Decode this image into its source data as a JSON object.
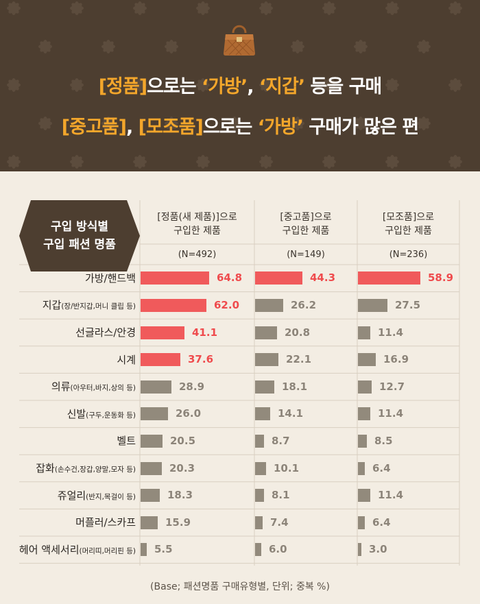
{
  "header": {
    "title_line1": {
      "a_hl": "[정품]",
      "b": "으로는 ",
      "c_hl": "‘가방’",
      "d": ", ",
      "e_hl": "‘지갑’",
      "f": " 등을 구매"
    },
    "title_line2": {
      "a_hl": "[중고품]",
      "b": ", ",
      "c_hl": "[모조품]",
      "d": "으로는 ",
      "e_hl": "‘가방’",
      "f": " 구매가 많은 편"
    },
    "icon": "handbag-icon"
  },
  "table": {
    "row_header_line1": "구입 방식별",
    "row_header_line2": "구입 패션 명품",
    "columns": [
      {
        "title_line1": "[정품(새 제품)]으로",
        "title_line2": "구입한 제품",
        "n": "(N=492)"
      },
      {
        "title_line1": "[중고품]으로",
        "title_line2": "구입한 제품",
        "n": "(N=149)"
      },
      {
        "title_line1": "[모조품]으로",
        "title_line2": "구입한 제품",
        "n": "(N=236)"
      }
    ],
    "rows": [
      {
        "main": "가방/핸드백",
        "sub": ""
      },
      {
        "main": "지갑",
        "sub": "(장/반지갑,머니 클립 등)"
      },
      {
        "main": "선글라스/안경",
        "sub": ""
      },
      {
        "main": "시계",
        "sub": ""
      },
      {
        "main": "의류",
        "sub": "(아우터,바지,상의 등)"
      },
      {
        "main": "신발",
        "sub": "(구두,운동화 등)"
      },
      {
        "main": "벨트",
        "sub": ""
      },
      {
        "main": "잡화",
        "sub": "(손수건,장갑,양말,모자 등)"
      },
      {
        "main": "쥬얼리",
        "sub": "(반지,목걸이 등)"
      },
      {
        "main": "머플러/스카프",
        "sub": ""
      },
      {
        "main": "헤어 액세서리",
        "sub": "(머리띠,머리핀 등)"
      }
    ]
  },
  "footnote": "(Base; 패션명품 구매유형별, 단위; 중복 %)",
  "colors": {
    "highlight_bar": "#f05a5b",
    "highlight_text": "#ef4b4d",
    "normal_bar": "#928a7c",
    "normal_text": "#8c8479",
    "title_accent": "#f3a62b",
    "header_bg": "#4d3e30",
    "panel_bg": "#f3ede3"
  },
  "chart_data": {
    "type": "bar",
    "orientation": "horizontal",
    "title": "",
    "xlabel": "",
    "ylabel": "",
    "unit": "%",
    "categories": [
      "가방/핸드백",
      "지갑",
      "선글라스/안경",
      "시계",
      "의류",
      "신발",
      "벨트",
      "잡화",
      "쥬얼리",
      "머플러/스카프",
      "헤어 액세서리"
    ],
    "series": [
      {
        "name": "[정품(새 제품)]으로 구입한 제품",
        "values": [
          64.8,
          62.0,
          41.1,
          37.6,
          28.9,
          26.0,
          20.5,
          20.3,
          18.3,
          15.9,
          5.5
        ],
        "highlighted": [
          true,
          true,
          true,
          true,
          false,
          false,
          false,
          false,
          false,
          false,
          false
        ]
      },
      {
        "name": "[중고품]으로 구입한 제품",
        "values": [
          44.3,
          26.2,
          20.8,
          22.1,
          18.1,
          14.1,
          8.7,
          10.1,
          8.1,
          7.4,
          6.0
        ],
        "highlighted": [
          true,
          false,
          false,
          false,
          false,
          false,
          false,
          false,
          false,
          false,
          false
        ]
      },
      {
        "name": "[모조품]으로 구입한 제품",
        "values": [
          58.9,
          27.5,
          11.4,
          16.9,
          12.7,
          11.4,
          8.5,
          6.4,
          11.4,
          6.4,
          3.0
        ],
        "highlighted": [
          true,
          false,
          false,
          false,
          false,
          false,
          false,
          false,
          false,
          false,
          false
        ]
      }
    ],
    "grid": false,
    "legend": "none"
  }
}
